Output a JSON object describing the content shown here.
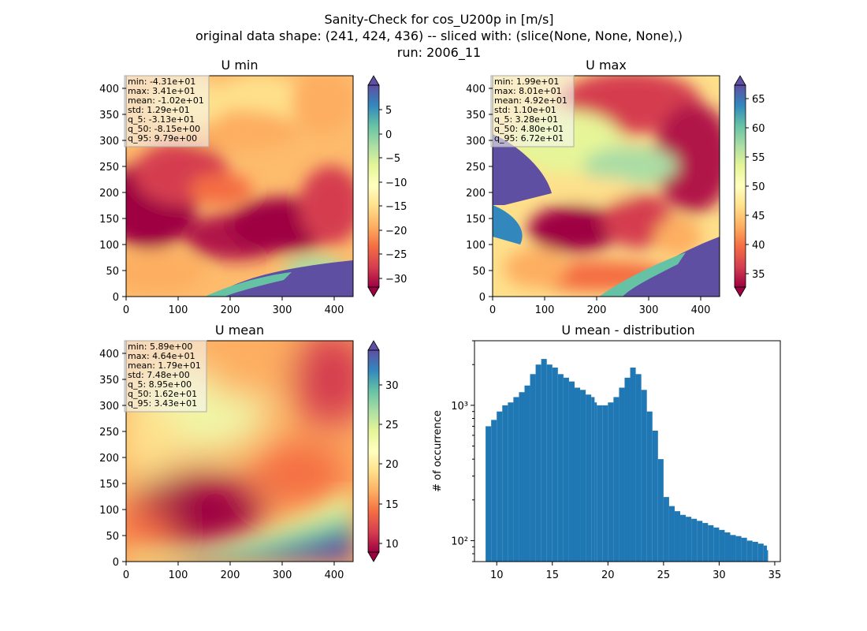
{
  "figure": {
    "title_lines": [
      "Sanity-Check for cos_U200p in [m/s]",
      "original data shape: (241, 424, 436) -- sliced with: (slice(None, None, None),)",
      "run: 2006_11"
    ]
  },
  "chart_data": [
    {
      "type": "heatmap",
      "title": "U min",
      "xlim": [
        0,
        436
      ],
      "ylim": [
        0,
        424
      ],
      "xticks": [
        "0",
        "100",
        "200",
        "300",
        "400"
      ],
      "yticks": [
        "0",
        "50",
        "100",
        "150",
        "200",
        "250",
        "300",
        "350",
        "400"
      ],
      "colormap": "Spectral",
      "colorbar": {
        "range": [
          -32,
          10
        ],
        "ticks": [
          "5",
          "0",
          "−5",
          "−10",
          "−15",
          "−20",
          "−25",
          "−30"
        ],
        "tick_values": [
          5,
          0,
          -5,
          -10,
          -15,
          -20,
          -25,
          -30
        ],
        "extend": "both"
      },
      "stats": [
        "min: -4.31e+01",
        "max: 3.41e+01",
        "mean: -1.02e+01",
        "std: 1.29e+01",
        "q_5: -3.13e+01",
        "q_50: -8.15e+00",
        "q_95: 9.79e+00"
      ]
    },
    {
      "type": "heatmap",
      "title": "U max",
      "xlim": [
        0,
        436
      ],
      "ylim": [
        0,
        424
      ],
      "xticks": [
        "0",
        "100",
        "200",
        "300",
        "400"
      ],
      "yticks": [
        "0",
        "50",
        "100",
        "150",
        "200",
        "250",
        "300",
        "350",
        "400"
      ],
      "colormap": "Spectral",
      "colorbar": {
        "range": [
          32,
          68
        ],
        "ticks": [
          "65",
          "60",
          "55",
          "50",
          "45",
          "40",
          "35"
        ],
        "tick_values": [
          65,
          60,
          55,
          50,
          45,
          40,
          35
        ],
        "extend": "both"
      },
      "stats": [
        "min: 1.99e+01",
        "max: 8.01e+01",
        "mean: 4.92e+01",
        "std: 1.10e+01",
        "q_5: 3.28e+01",
        "q_50: 4.80e+01",
        "q_95: 6.72e+01"
      ]
    },
    {
      "type": "heatmap",
      "title": "U mean",
      "xlim": [
        0,
        436
      ],
      "ylim": [
        0,
        424
      ],
      "xticks": [
        "0",
        "100",
        "200",
        "300",
        "400"
      ],
      "yticks": [
        "0",
        "50",
        "100",
        "150",
        "200",
        "250",
        "300",
        "350",
        "400"
      ],
      "colormap": "Spectral",
      "colorbar": {
        "range": [
          8.5,
          34.5
        ],
        "ticks": [
          "30",
          "25",
          "20",
          "15",
          "10"
        ],
        "tick_values": [
          30,
          25,
          20,
          15,
          10
        ],
        "extend": "both"
      },
      "stats": [
        "min: 5.89e+00",
        "max: 4.64e+01",
        "mean: 1.79e+01",
        "std: 7.48e+00",
        "q_5: 8.95e+00",
        "q_50: 1.62e+01",
        "q_95: 3.43e+01"
      ]
    },
    {
      "type": "bar",
      "title": "U mean - distribution",
      "ylabel": "# of occurrence",
      "yscale": "log",
      "xlim": [
        8,
        35.5
      ],
      "ylim": [
        70,
        3000
      ],
      "xticks": [
        10,
        15,
        20,
        25,
        30,
        35
      ],
      "xtick_labels": [
        "10",
        "15",
        "20",
        "25",
        "30",
        "35"
      ],
      "yticks": [
        100,
        1000
      ],
      "ytick_labels": [
        "10²",
        "10³"
      ],
      "color": "#1f77b4",
      "x": [
        9.0,
        9.5,
        10.0,
        10.5,
        11.0,
        11.5,
        12.0,
        12.5,
        13.0,
        13.5,
        14.0,
        14.5,
        15.0,
        15.5,
        16.0,
        16.5,
        17.0,
        17.5,
        18.0,
        18.5,
        18.8,
        19.0,
        19.5,
        20.0,
        20.5,
        21.0,
        21.5,
        22.0,
        22.5,
        23.0,
        23.5,
        24.0,
        24.5,
        25.0,
        25.5,
        26.0,
        26.5,
        27.0,
        27.5,
        28.0,
        28.5,
        29.0,
        29.5,
        30.0,
        30.5,
        31.0,
        31.5,
        32.0,
        32.5,
        33.0,
        33.5,
        34.0,
        34.3
      ],
      "values": [
        700,
        780,
        900,
        1000,
        1050,
        1150,
        1250,
        1400,
        1700,
        2000,
        2200,
        2000,
        1900,
        1700,
        1600,
        1500,
        1350,
        1300,
        1200,
        1150,
        1050,
        1000,
        1000,
        1050,
        1150,
        1350,
        1600,
        1900,
        1700,
        1300,
        900,
        650,
        400,
        210,
        180,
        165,
        155,
        150,
        145,
        140,
        135,
        130,
        125,
        120,
        115,
        110,
        108,
        105,
        100,
        98,
        95,
        92,
        85
      ]
    }
  ]
}
